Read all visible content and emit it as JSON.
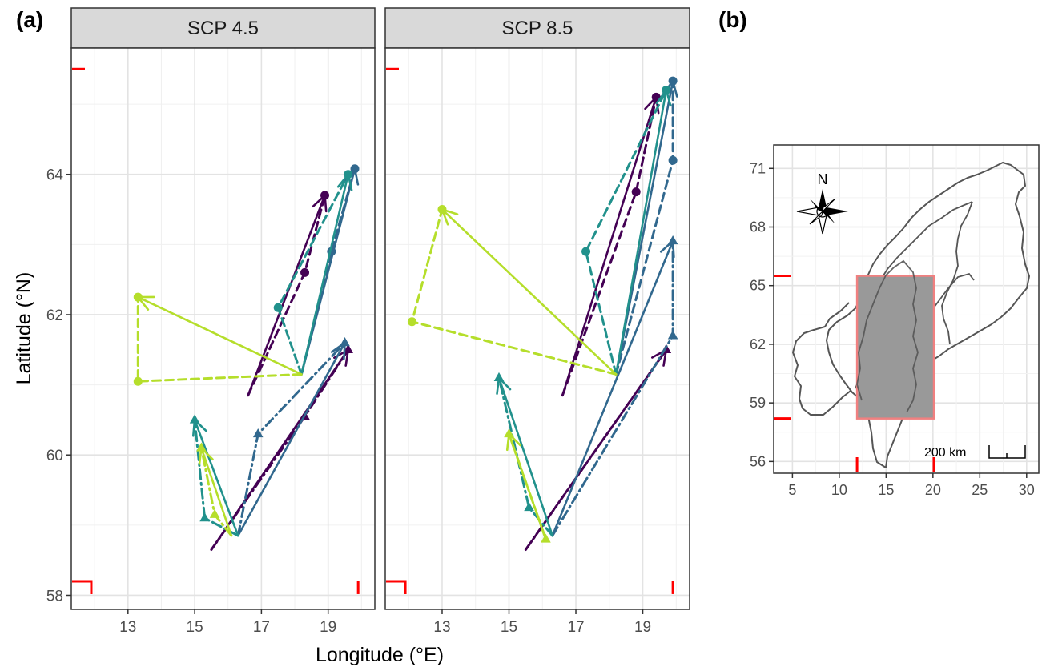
{
  "panel_tags": [
    "(a)",
    "(b)"
  ],
  "chart_data": [
    {
      "type": "line",
      "subtype": "trajectory-arrows-faceted",
      "facets": [
        "SCP 4.5",
        "SCP 8.5"
      ],
      "xlabel": "Longitude (°E)",
      "ylabel": "Latitude (°N)",
      "xlim": [
        11.3,
        20.4
      ],
      "ylim": [
        57.8,
        65.8
      ],
      "x_ticks": [
        13,
        15,
        17,
        19
      ],
      "y_ticks": [
        58,
        60,
        62,
        64
      ],
      "grid": true,
      "legend": "none",
      "colors": [
        "#440154",
        "#31688E",
        "#21918C",
        "#B5DE2B"
      ],
      "bbox_corners": {
        "xmin": 11.9,
        "xmax": 19.9,
        "ymin": 58.2,
        "ymax": 65.5,
        "color": "#FF0000"
      },
      "series": [
        {
          "facet": "SCP 4.5",
          "marker": "circle",
          "color": "#440154",
          "start": [
            16.6,
            60.85
          ],
          "mid": [
            18.3,
            62.6
          ],
          "end": [
            18.9,
            63.7
          ]
        },
        {
          "facet": "SCP 4.5",
          "marker": "circle",
          "color": "#31688E",
          "start": [
            18.2,
            61.15
          ],
          "mid": [
            19.1,
            62.9
          ],
          "end": [
            19.8,
            64.08
          ]
        },
        {
          "facet": "SCP 4.5",
          "marker": "circle",
          "color": "#21918C",
          "start": [
            18.2,
            61.15
          ],
          "mid": [
            17.5,
            62.1
          ],
          "end": [
            19.6,
            64.0
          ]
        },
        {
          "facet": "SCP 4.5",
          "marker": "circle",
          "color": "#B5DE2B",
          "start": [
            18.2,
            61.15
          ],
          "mid": [
            13.3,
            61.05
          ],
          "end": [
            13.3,
            62.25
          ]
        },
        {
          "facet": "SCP 4.5",
          "marker": "triangle",
          "color": "#440154",
          "start": [
            15.5,
            58.65
          ],
          "mid": [
            18.3,
            60.55
          ],
          "end": [
            19.6,
            61.5
          ]
        },
        {
          "facet": "SCP 4.5",
          "marker": "triangle",
          "color": "#31688E",
          "start": [
            16.3,
            58.85
          ],
          "mid": [
            16.9,
            60.3
          ],
          "end": [
            19.5,
            61.6
          ]
        },
        {
          "facet": "SCP 4.5",
          "marker": "triangle",
          "color": "#21918C",
          "start": [
            16.3,
            58.85
          ],
          "mid": [
            15.3,
            59.1
          ],
          "end": [
            15.0,
            60.5
          ]
        },
        {
          "facet": "SCP 4.5",
          "marker": "triangle",
          "color": "#B5DE2B",
          "start": [
            16.1,
            58.85
          ],
          "mid": [
            15.6,
            59.15
          ],
          "end": [
            15.2,
            60.1
          ]
        },
        {
          "facet": "SCP 8.5",
          "marker": "circle",
          "color": "#440154",
          "start": [
            16.6,
            60.85
          ],
          "mid": [
            18.8,
            63.75
          ],
          "end": [
            19.4,
            65.1
          ]
        },
        {
          "facet": "SCP 8.5",
          "marker": "circle",
          "color": "#31688E",
          "start": [
            18.2,
            61.15
          ],
          "mid": [
            19.9,
            64.2
          ],
          "end": [
            19.9,
            65.33
          ]
        },
        {
          "facet": "SCP 8.5",
          "marker": "circle",
          "color": "#21918C",
          "start": [
            18.2,
            61.15
          ],
          "mid": [
            17.3,
            62.9
          ],
          "end": [
            19.7,
            65.2
          ]
        },
        {
          "facet": "SCP 8.5",
          "marker": "circle",
          "color": "#B5DE2B",
          "start": [
            18.2,
            61.15
          ],
          "mid": [
            12.1,
            61.9
          ],
          "end": [
            13.0,
            63.5
          ]
        },
        {
          "facet": "SCP 8.5",
          "marker": "triangle",
          "color": "#440154",
          "start": [
            15.5,
            58.65
          ],
          "mid": [
            19.7,
            61.5
          ],
          "end": [
            19.7,
            61.5
          ]
        },
        {
          "facet": "SCP 8.5",
          "marker": "triangle",
          "color": "#31688E",
          "start": [
            16.3,
            58.85
          ],
          "mid": [
            19.9,
            61.7
          ],
          "end": [
            19.9,
            63.05
          ]
        },
        {
          "facet": "SCP 8.5",
          "marker": "triangle",
          "color": "#21918C",
          "start": [
            16.3,
            58.85
          ],
          "mid": [
            15.6,
            59.25
          ],
          "end": [
            14.7,
            61.1
          ]
        },
        {
          "facet": "SCP 8.5",
          "marker": "triangle",
          "color": "#B5DE2B",
          "start": [
            16.1,
            58.8
          ],
          "mid": [
            16.1,
            58.8
          ],
          "end": [
            15.0,
            60.3
          ]
        }
      ]
    },
    {
      "type": "map",
      "xlim": [
        3,
        31.3
      ],
      "ylim": [
        55.4,
        72.2
      ],
      "x_ticks": [
        5,
        10,
        15,
        20,
        25,
        30
      ],
      "y_ticks": [
        56,
        59,
        62,
        65,
        68,
        71
      ],
      "grid": true,
      "highlight_box": {
        "xmin": 11.9,
        "xmax": 20.1,
        "ymin": 58.2,
        "ymax": 65.5,
        "fill": "#999999",
        "stroke": "#F08080"
      },
      "compass_label": "N",
      "scale_bar_label": "200 km"
    }
  ]
}
